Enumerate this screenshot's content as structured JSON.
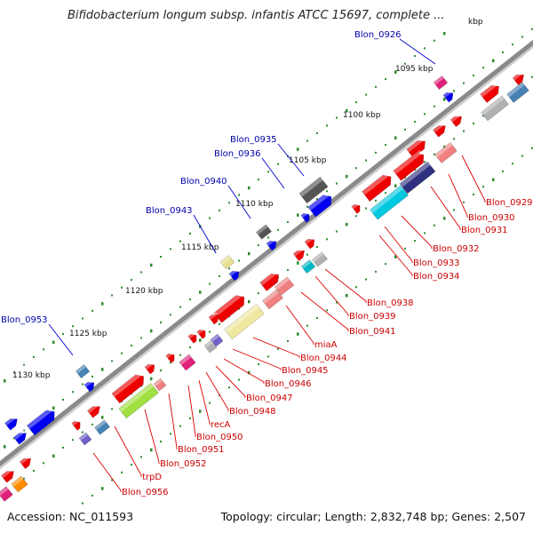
{
  "title": "Bifidobacterium longum subsp. infantis ATCC 15697, complete ...",
  "footer": {
    "accession": "Accession: NC_011593",
    "summary": "Topology: circular; Length: 2,832,748 bp; Genes: 2,507"
  },
  "colors": {
    "backbone": "#8a8a8a",
    "label_top": "#0000aa",
    "label_bottom": "#cc0000",
    "tick": "#2e8b2e"
  },
  "ticks": [
    "kbp",
    "1095 kbp",
    "1100 kbp",
    "1105 kbp",
    "1110 kbp",
    "1115 kbp",
    "1120 kbp",
    "1125 kbp",
    "1130 kbp"
  ],
  "top_labels": [
    "Blon_0926",
    "Blon_0935",
    "Blon_0936",
    "Blon_0940",
    "Blon_0943",
    "Blon_0953"
  ],
  "bottom_labels": [
    "Blon_0929",
    "Blon_0930",
    "Blon_0931",
    "Blon_0932",
    "Blon_0933",
    "Blon_0934",
    "Blon_0938",
    "Blon_0939",
    "Blon_0941",
    "miaA",
    "Blon_0944",
    "Blon_0945",
    "Blon_0946",
    "Blon_0947",
    "Blon_0948",
    "recA",
    "Blon_0950",
    "Blon_0951",
    "Blon_0952",
    "trpD",
    "Blon_0956"
  ]
}
